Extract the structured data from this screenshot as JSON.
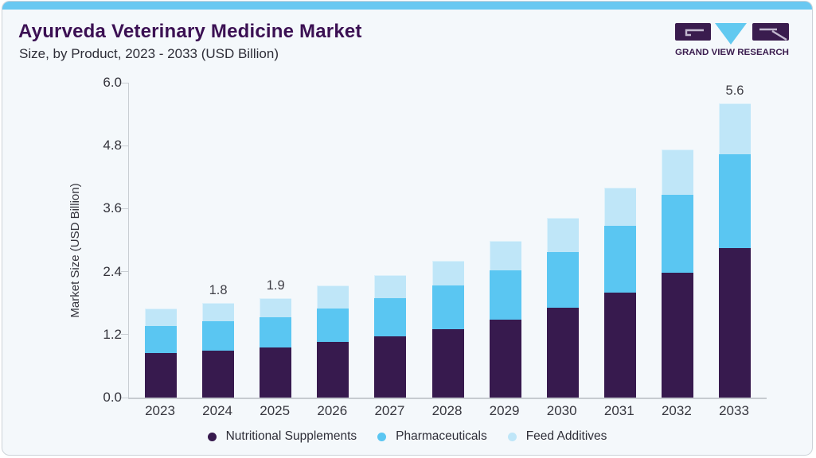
{
  "header": {
    "title": "Ayurveda Veterinary Medicine Market",
    "subtitle": "Size, by Product, 2023 - 2033 (USD Billion)"
  },
  "logo": {
    "brand_text": "GRAND VIEW RESEARCH"
  },
  "colors": {
    "accent_bar": "#69c8f1",
    "card_background": "#f4f8fb",
    "title_text": "#3b1053",
    "axis_line": "#c9ced3",
    "logo_purple": "#3a1c4e",
    "logo_blue": "#62c9f0",
    "series_nutritional": "#371a4e",
    "series_pharmaceuticals": "#5ac6f2",
    "series_feed": "#bfe6f8"
  },
  "chart_data": {
    "type": "bar",
    "stacked": true,
    "title": "Ayurveda Veterinary Medicine Market Size, by Product, 2023 - 2033 (USD Billion)",
    "xlabel": "",
    "ylabel": "Market Size (USD Billion)",
    "ylim": [
      0,
      6.0
    ],
    "y_ticks": [
      0.0,
      1.2,
      2.4,
      3.6,
      4.8,
      6.0
    ],
    "y_tick_labels": [
      "0.0",
      "1.2",
      "2.4",
      "3.6",
      "4.8",
      "6.0"
    ],
    "grid": false,
    "legend_position": "bottom",
    "categories": [
      "2023",
      "2024",
      "2025",
      "2026",
      "2027",
      "2028",
      "2029",
      "2030",
      "2031",
      "2032",
      "2033"
    ],
    "series": [
      {
        "name": "Nutritional Supplements",
        "color": "#371a4e",
        "values": [
          0.85,
          0.9,
          0.95,
          1.06,
          1.17,
          1.31,
          1.49,
          1.71,
          2.0,
          2.38,
          2.85
        ]
      },
      {
        "name": "Pharmaceuticals",
        "color": "#5ac6f2",
        "values": [
          0.52,
          0.55,
          0.58,
          0.64,
          0.73,
          0.82,
          0.93,
          1.06,
          1.27,
          1.49,
          1.78
        ]
      },
      {
        "name": "Feed Additives",
        "color": "#bfe6f8",
        "values": [
          0.33,
          0.35,
          0.37,
          0.43,
          0.44,
          0.48,
          0.56,
          0.65,
          0.73,
          0.86,
          0.97
        ]
      }
    ],
    "totals": [
      1.7,
      1.8,
      1.9,
      2.13,
      2.34,
      2.61,
      2.98,
      3.42,
      4.0,
      4.73,
      5.6
    ],
    "total_labels": [
      null,
      "1.8",
      "1.9",
      null,
      null,
      null,
      null,
      null,
      null,
      null,
      "5.6"
    ]
  }
}
